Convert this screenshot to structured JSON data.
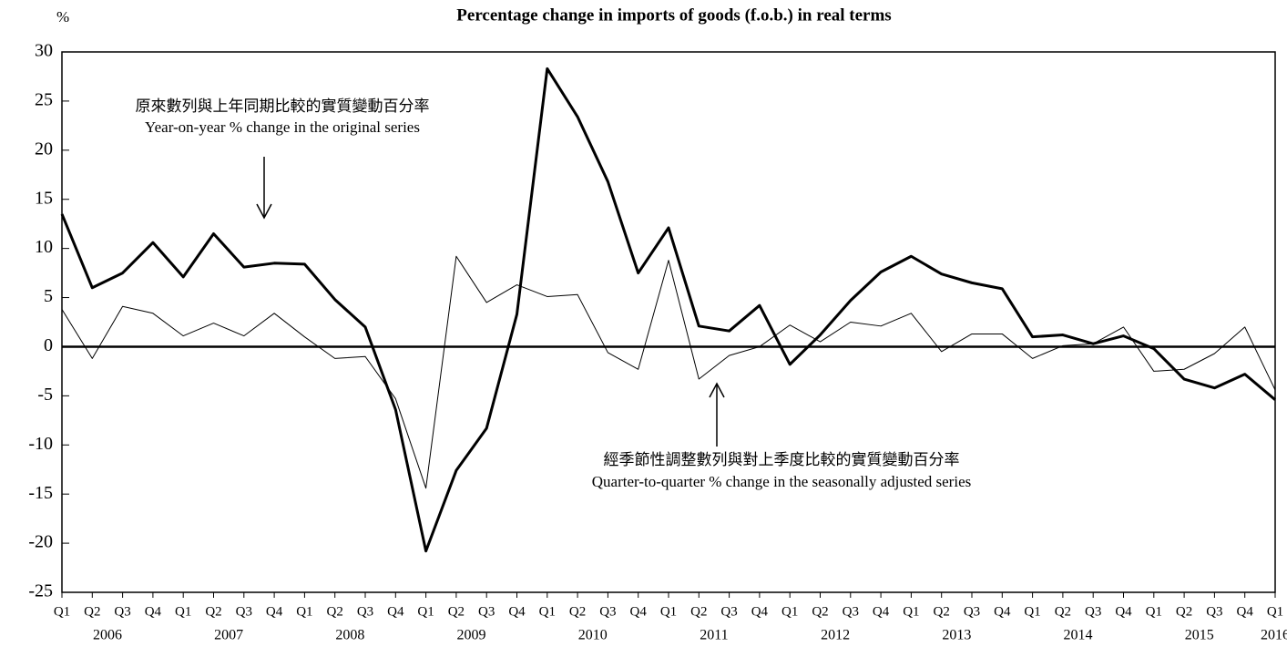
{
  "chart_data": {
    "type": "line",
    "title": "Percentage change in imports of goods (f.o.b.) in real terms",
    "y_unit": "%",
    "categories": [
      "Q1",
      "Q2",
      "Q3",
      "Q4",
      "Q1",
      "Q2",
      "Q3",
      "Q4",
      "Q1",
      "Q2",
      "Q3",
      "Q4",
      "Q1",
      "Q2",
      "Q3",
      "Q4",
      "Q1",
      "Q2",
      "Q3",
      "Q4",
      "Q1",
      "Q2",
      "Q3",
      "Q4",
      "Q1",
      "Q2",
      "Q3",
      "Q4",
      "Q1",
      "Q2",
      "Q3",
      "Q4",
      "Q1",
      "Q2",
      "Q3",
      "Q4",
      "Q1",
      "Q2",
      "Q3",
      "Q4",
      "Q1"
    ],
    "years": [
      "2006",
      "2007",
      "2008",
      "2009",
      "2010",
      "2011",
      "2012",
      "2013",
      "2014",
      "2015",
      "2016"
    ],
    "series": [
      {
        "color": "#000000",
        "width": 3,
        "values": [
          13.5,
          6.0,
          7.5,
          10.6,
          7.1,
          11.5,
          8.1,
          8.5,
          8.4,
          4.8,
          2.0,
          -6.4,
          -20.8,
          -12.6,
          -8.3,
          3.3,
          28.3,
          23.4,
          16.8,
          7.5,
          12.1,
          2.1,
          1.6,
          4.2,
          -1.8,
          1.2,
          4.7,
          7.6,
          9.2,
          7.4,
          6.5,
          5.9,
          1.0,
          1.2,
          0.3,
          1.1,
          -0.2,
          -3.3,
          -4.2,
          -2.8,
          -5.4
        ]
      },
      {
        "color": "#000000",
        "width": 1,
        "values": [
          3.8,
          -1.2,
          4.1,
          3.4,
          1.1,
          2.4,
          1.1,
          3.4,
          1.0,
          -1.2,
          -1.0,
          -5.3,
          -14.4,
          9.2,
          4.5,
          6.3,
          5.1,
          5.3,
          -0.6,
          -2.3,
          8.8,
          -3.3,
          -0.9,
          0.0,
          2.2,
          0.5,
          2.5,
          2.1,
          3.4,
          -0.5,
          1.3,
          1.3,
          -1.2,
          0.1,
          0.3,
          2.0,
          -2.5,
          -2.3,
          -0.7,
          2.0,
          -4.4
        ]
      }
    ],
    "annotations": [
      {
        "zh": "原來數列與上年同期比較的實質變動百分率",
        "en": "Year-on-year % change in the original series"
      },
      {
        "zh": "經季節性調整數列與對上季度比較的實質變動百分率",
        "en": "Quarter-to-quarter % change in the seasonally adjusted series"
      }
    ],
    "ylim": [
      -25,
      30
    ],
    "yticks": [
      -25,
      -20,
      -15,
      -10,
      -5,
      0,
      5,
      10,
      15,
      20,
      25,
      30
    ]
  }
}
